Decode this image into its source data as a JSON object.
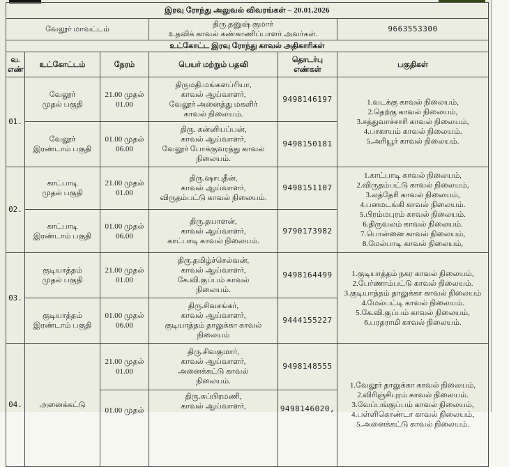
{
  "doc": {
    "title": "இரவு ரோந்து அலுவல் விவரங்கள் – 20.01.2026",
    "district": "வேலூர் மாவட்டம்",
    "officer": "திரு.தனுஷ் குமார்\nஉதவிக் காவல் கண்காணிப்பாளர் அவர்கள்.",
    "phone": "9663553300",
    "subtitle": "உட்கோட்ட இரவு ரோந்து காவல் அதிகாரிகள்"
  },
  "headers": {
    "sno": "வ.\nஎண்",
    "subdivision": "உட்கோட்டம்",
    "time": "நேரம்",
    "name": "பெயர் மற்றும் பதவி",
    "contact": "தொடர்பு\nஎண்கள்",
    "areas": "பகுதிகள்"
  },
  "groups": [
    {
      "sno": "01.",
      "sub1": {
        "zone": "வேலூர்\nமுதல் பகுதி",
        "time": "21.00 முதல்\n01.00",
        "officer": "திருமதி.மங்களப்ரியா,\nகாவல் ஆய்வாளர்,\nவேலூர் அனைத்து மகளிர்\nகாவல் நிலையம்.",
        "phone": "9498146197"
      },
      "sub2": {
        "zone": "வேலூர்\nஇரண்டாம் பகுதி",
        "time": "01.00 முதல்\n06.00",
        "officer": "திரு. கன்னியப்பன்,\nகாவல் ஆய்வாளர்,\nவேலூர் போக்குவரத்து காவல்\nநிலையம்.",
        "phone": "9498150181"
      },
      "areas": "1.வடக்கு காவல் நிலையம்,\n2.தெற்கு காவல் நிலையம்,\n3.சத்துவாச்சாரி காவல் நிலையம்,\n4.பாகாயம் காவல் நிலையம்.\n5.அரியூர் காவல் நிலையம்."
    },
    {
      "sno": "02.",
      "sub1": {
        "zone": "காட்பாடி\nமுதல் பகுதி",
        "time": "21.00 முதல்\n01.00",
        "officer": "திரு.ஷாபுதீன்,\nகாவல் ஆய்வாளர்,\nவிருதம்பட்டு காவல் நிலையம்.",
        "phone": "9498151107"
      },
      "sub2": {
        "zone": "காட்பாடி\nஇரண்டாம் பகுதி",
        "time": "01.00 முதல்\n06.00",
        "officer": "திரு.தயாளன்,\nகாவல் ஆய்வாளர்,\nகாட்பாடி காவல் நிலையம்.",
        "phone": "9790173982"
      },
      "areas": "1.காட்பாடி காவல் நிலையம்,\n2.விருதம்பட்டு காவல் நிலையம்,\n3.லத்தேரி காவல் நிலையம்,\n4.பனமடங்கி காவல் நிலையம்.\n5.பிரம்மபுரம் காவல் நிலையம்.\n6.திருவலம் காவல் நிலையம்.\n7.பொன்னை காவல் நிலையம்,\n8.மேல்பாடி காவல் நிலையம்,"
    },
    {
      "sno": "03.",
      "sub1": {
        "zone": "குடியாத்தம்\nமுதல் பகுதி",
        "time": "21.00 முதல்\n01.00",
        "officer": "திரு.தமிழ்ச்செல்வன்,\nகாவல் ஆய்வாளர்,\nகே.வி.குப்பம் காவல்\nநிலையம்.",
        "phone": "9498164499"
      },
      "sub2": {
        "zone": "குடியாத்தம்\nஇரண்டாம் பகுதி",
        "time": "01.00 முதல்\n06.00",
        "officer": "திரு.சிவசங்கர்,\nகாவல் ஆய்வாளர்,\nகுடியாத்தம் தாலுக்கா காவல்\nநிலையம்",
        "phone": "9444155227"
      },
      "areas": "1.குடியாத்தம் நகர காவல் நிலையம்,\n2.பேர்ணாம்பட்டு காவல் நிலையம்.\n3.குடியாத்தம் தாலுக்கா காவல் நிலையம்\n4.மேல்பட்டி காவல் நிலையம்.\n5.கே.வி.குப்பம் காவல் நிலையம்,\n6.பரதராமி காவல் நிலையம்."
    },
    {
      "sno": "04.",
      "zone": "அனைக்கட்டு",
      "sub1": {
        "time": "21.00 முதல்\n01.00",
        "officer": "திரு.சிவகுமார்,\nகாவல் ஆய்வாளர்,\nஅனைக்கட்டு காவல்\nநிலையம்.",
        "phone": "9498148555"
      },
      "sub2": {
        "time": "01.00 முதல்",
        "officer": "திரு.சுப்பிரமணி,\nகாவல் ஆய்வாளர்,",
        "phone": "9498146020,"
      },
      "areas": "1.வேலூர் தாலுக்கா காவல் நிலையம்,\n2.விரிஞ்சிபுரம் காவல் நிலையம்.\n3.வேப்பங்குப்பம் காவல் நிலையம்,\n4.பள்ளிகொண்டா காவல் நிலையம்,\n5.அனைக்கட்டு காவல் நிலையம்."
    }
  ]
}
